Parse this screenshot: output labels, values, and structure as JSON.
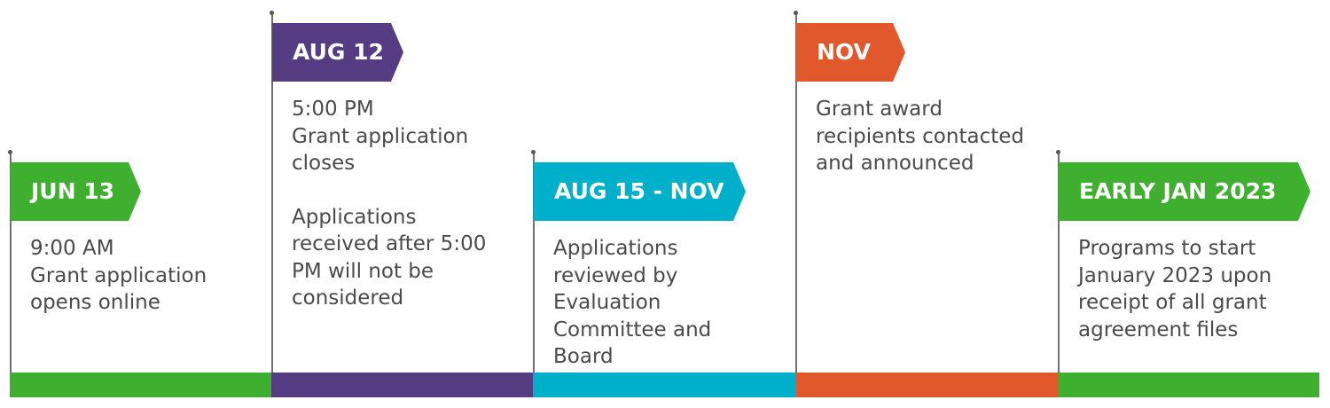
{
  "milestones": [
    {
      "date": "JUN 13",
      "color": "#3faf2f",
      "paragraphs": [
        "9:00 AM\nGrant application\nopens online"
      ]
    },
    {
      "date": "AUG 12",
      "color": "#563c82",
      "paragraphs": [
        "5:00 PM\nGrant application\ncloses",
        "Applications\nreceived after 5:00\nPM will not be\nconsidered"
      ]
    },
    {
      "date": "AUG 15 - NOV",
      "color": "#00afc9",
      "paragraphs": [
        "Applications\nreviewed by\nEvaluation\nCommittee and\nBoard"
      ]
    },
    {
      "date": "NOV",
      "color": "#e0582c",
      "paragraphs": [
        "Grant award\nrecipients contacted\nand announced"
      ]
    },
    {
      "date": "EARLY JAN 2023",
      "color": "#3faf2f",
      "paragraphs": [
        "Programs to start\nJanuary 2023 upon\nreceipt of all grant\nagreement files"
      ]
    }
  ]
}
